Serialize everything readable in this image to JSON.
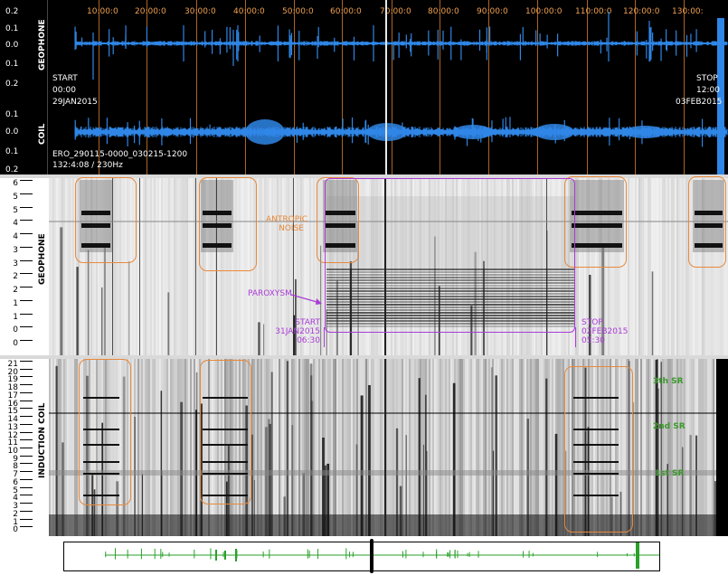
{
  "top": {
    "ticks": [
      "10:00:0",
      "20:00:0",
      "30:00:0",
      "40:00:0",
      "50:00:0",
      "60:00:0",
      "70:00:0",
      "80:00:0",
      "90:00:0",
      "100:00:0",
      "110:00:0",
      "120:00:0",
      "130:00:"
    ],
    "geophone_label": "GEOPHONE",
    "coil_label": "COIL",
    "geophone_y": [
      "0.1",
      "0.0",
      "0.1"
    ],
    "top_y": "0.2",
    "coil_y": [
      "0.2",
      "0.1",
      "0.0",
      "0.1",
      "0.2"
    ],
    "start": {
      "line1": "START",
      "line2": "00:00",
      "line3": "29JAN2015"
    },
    "stop": {
      "line1": "STOP",
      "line2": "12:00",
      "line3": "03FEB2015"
    },
    "file": "ERO_290115-0000_030215-1200",
    "info": "132:4:08 / 230Hz"
  },
  "geo_spec": {
    "label": "GEOPHONE",
    "y_ticks": [
      "6",
      "5",
      "5",
      "4",
      "4",
      "3",
      "3",
      "2",
      "2",
      "1",
      "1",
      "0",
      "0"
    ],
    "antropic": "ANTROPIC\nNOISE",
    "antropic_line1": "ANTROPIC",
    "antropic_line2": "NOISE",
    "paroxysm": "PAROXYSM",
    "start": {
      "line1": "START",
      "line2": "31JAN2015",
      "line3": "06:30"
    },
    "stop": {
      "line1": "STOP",
      "line2": "02FEB2015",
      "line3": "05:30"
    }
  },
  "coil_spec": {
    "label": "INDUCTION COIL",
    "y_ticks": [
      "21",
      "20",
      "19",
      "18",
      "17",
      "16",
      "15",
      "14",
      "13",
      "12",
      "11",
      "10",
      "9",
      "8",
      "7",
      "6",
      "5",
      "4",
      "3",
      "2",
      "1",
      "0"
    ],
    "sr3": "3th SR",
    "sr2": "2nd SR",
    "sr1": "1st SR"
  },
  "colors": {
    "wave": "#2f86e6",
    "grid": "#c8782a",
    "orange": "#e8893a",
    "purple": "#a93cd6",
    "green": "#3a9a2a",
    "overview": "#2aa02a"
  }
}
